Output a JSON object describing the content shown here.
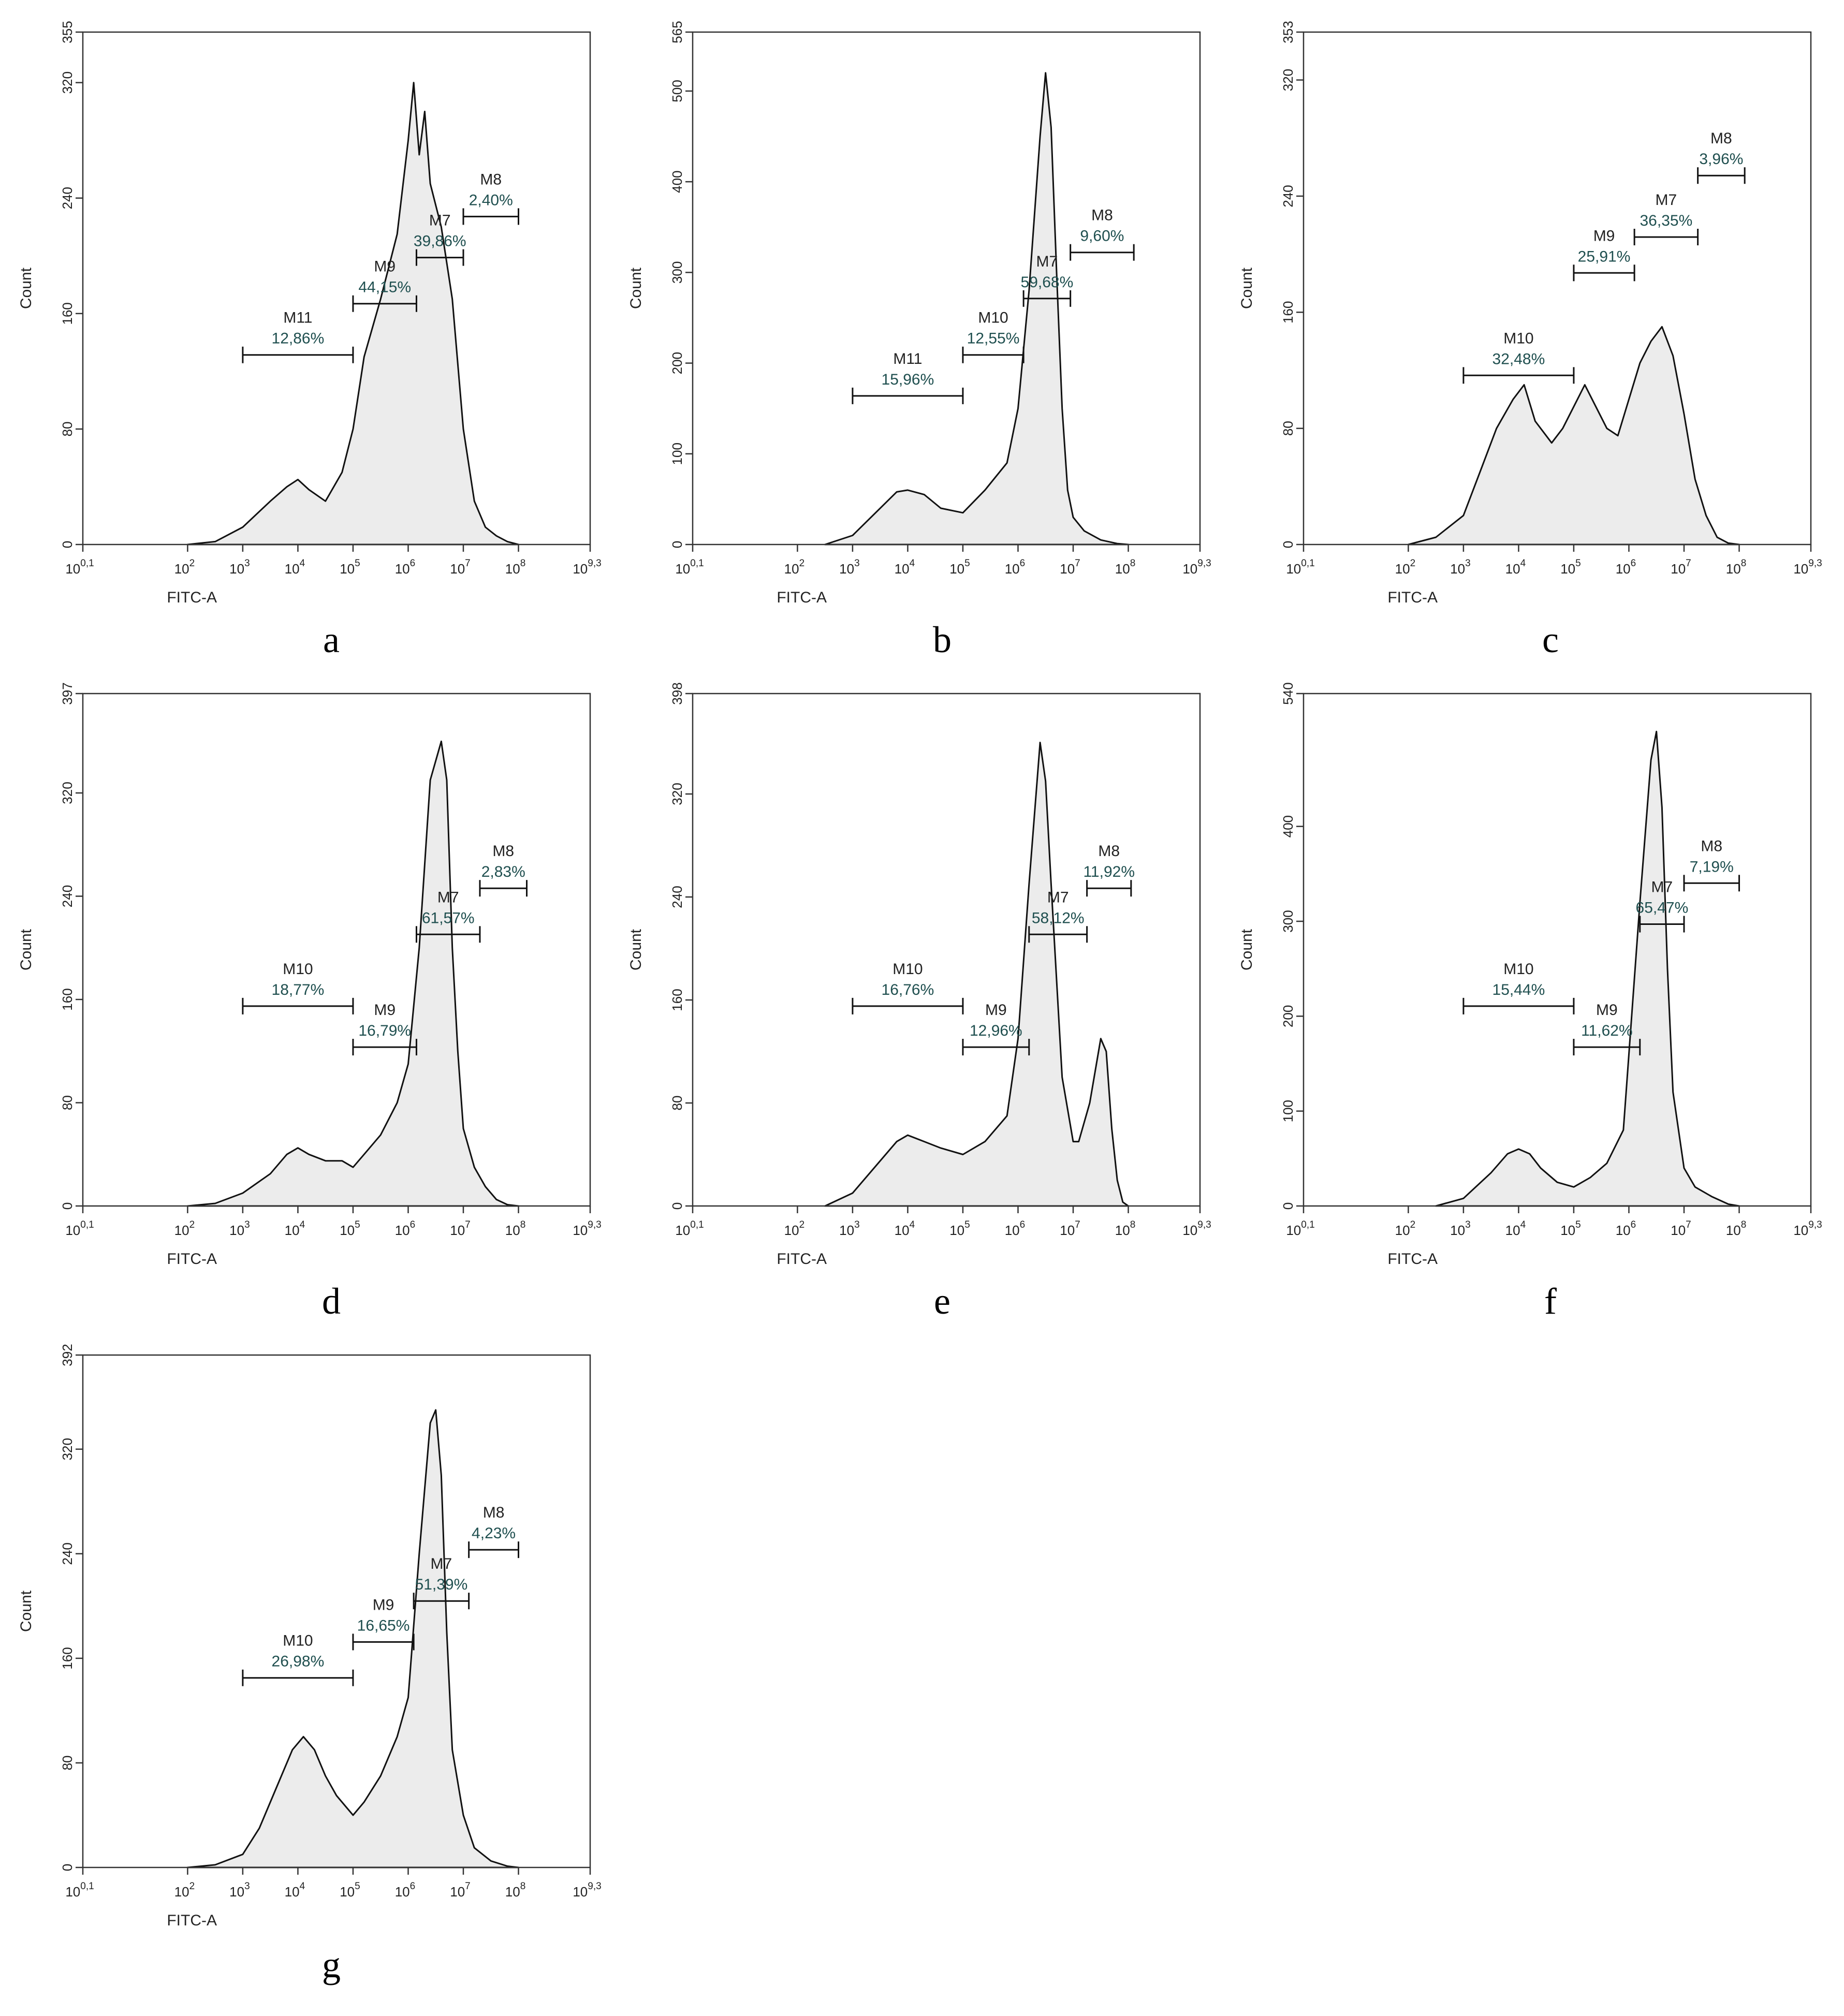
{
  "chart_data": [
    {
      "panel": "a",
      "type": "area",
      "xlabel": "FITC-A",
      "ylabel": "Count",
      "x_ticks": [
        "10^0,1",
        "10^2",
        "10^3",
        "10^4",
        "10^5",
        "10^6",
        "10^7",
        "10^8",
        "10^9,3"
      ],
      "y_ticks": [
        "0",
        "80",
        "160",
        "240",
        "320",
        "355"
      ],
      "ylim": [
        0,
        355
      ],
      "histogram": {
        "x_log10": [
          2.0,
          2.5,
          3.0,
          3.5,
          3.8,
          4.0,
          4.2,
          4.5,
          4.8,
          5.0,
          5.2,
          5.5,
          5.8,
          6.0,
          6.1,
          6.2,
          6.3,
          6.4,
          6.6,
          6.8,
          7.0,
          7.2,
          7.4,
          7.6,
          7.8,
          8.0
        ],
        "y": [
          0,
          2,
          12,
          30,
          40,
          45,
          38,
          30,
          50,
          80,
          130,
          170,
          215,
          280,
          320,
          270,
          300,
          250,
          220,
          170,
          80,
          30,
          12,
          6,
          2,
          0
        ]
      },
      "gates": [
        {
          "name": "M11",
          "percent": "12,86%",
          "x_range": [
            3.0,
            5.0
          ]
        },
        {
          "name": "M9",
          "percent": "44,15%",
          "x_range": [
            5.0,
            6.15
          ]
        },
        {
          "name": "M7",
          "percent": "39,86%",
          "x_range": [
            6.15,
            7.0
          ]
        },
        {
          "name": "M8",
          "percent": "2,40%",
          "x_range": [
            7.0,
            8.0
          ]
        }
      ]
    },
    {
      "panel": "b",
      "type": "area",
      "xlabel": "FITC-A",
      "ylabel": "Count",
      "x_ticks": [
        "10^0,1",
        "10^2",
        "10^3",
        "10^4",
        "10^5",
        "10^6",
        "10^7",
        "10^8",
        "10^9,3"
      ],
      "y_ticks": [
        "0",
        "100",
        "200",
        "300",
        "400",
        "500",
        "565"
      ],
      "ylim": [
        0,
        565
      ],
      "histogram": {
        "x_log10": [
          2.5,
          3.0,
          3.5,
          3.8,
          4.0,
          4.3,
          4.6,
          5.0,
          5.4,
          5.8,
          6.0,
          6.2,
          6.4,
          6.5,
          6.6,
          6.7,
          6.8,
          6.9,
          7.0,
          7.2,
          7.5,
          7.8,
          8.0
        ],
        "y": [
          0,
          10,
          40,
          58,
          60,
          55,
          40,
          35,
          60,
          90,
          150,
          280,
          450,
          520,
          460,
          300,
          150,
          60,
          30,
          15,
          5,
          1,
          0
        ]
      },
      "gates": [
        {
          "name": "M11",
          "percent": "15,96%",
          "x_range": [
            3.0,
            5.0
          ]
        },
        {
          "name": "M10",
          "percent": "12,55%",
          "x_range": [
            5.0,
            6.1
          ]
        },
        {
          "name": "M7",
          "percent": "59,68%",
          "x_range": [
            6.1,
            6.95
          ]
        },
        {
          "name": "M8",
          "percent": "9,60%",
          "x_range": [
            6.95,
            8.1
          ]
        }
      ]
    },
    {
      "panel": "c",
      "type": "area",
      "xlabel": "FITC-A",
      "ylabel": "Count",
      "x_ticks": [
        "10^0,1",
        "10^2",
        "10^3",
        "10^4",
        "10^5",
        "10^6",
        "10^7",
        "10^8",
        "10^9,3"
      ],
      "y_ticks": [
        "0",
        "80",
        "160",
        "240",
        "320",
        "353"
      ],
      "ylim": [
        0,
        353
      ],
      "histogram": {
        "x_log10": [
          2.0,
          2.5,
          3.0,
          3.3,
          3.6,
          3.9,
          4.1,
          4.3,
          4.6,
          4.8,
          5.0,
          5.2,
          5.4,
          5.6,
          5.8,
          6.0,
          6.2,
          6.4,
          6.6,
          6.8,
          7.0,
          7.2,
          7.4,
          7.6,
          7.8,
          8.0
        ],
        "y": [
          0,
          5,
          20,
          50,
          80,
          100,
          110,
          85,
          70,
          80,
          95,
          110,
          95,
          80,
          75,
          100,
          125,
          140,
          150,
          130,
          90,
          45,
          20,
          5,
          1,
          0
        ]
      },
      "gates": [
        {
          "name": "M10",
          "percent": "32,48%",
          "x_range": [
            3.0,
            5.0
          ]
        },
        {
          "name": "M9",
          "percent": "25,91%",
          "x_range": [
            5.0,
            6.1
          ]
        },
        {
          "name": "M7",
          "percent": "36,35%",
          "x_range": [
            6.1,
            7.25
          ]
        },
        {
          "name": "M8",
          "percent": "3,96%",
          "x_range": [
            7.25,
            8.1
          ]
        }
      ]
    },
    {
      "panel": "d",
      "type": "area",
      "xlabel": "FITC-A",
      "ylabel": "Count",
      "x_ticks": [
        "10^0,1",
        "10^2",
        "10^3",
        "10^4",
        "10^5",
        "10^6",
        "10^7",
        "10^8",
        "10^9,3"
      ],
      "y_ticks": [
        "0",
        "80",
        "160",
        "240",
        "320",
        "397"
      ],
      "ylim": [
        0,
        397
      ],
      "histogram": {
        "x_log10": [
          2.0,
          2.5,
          3.0,
          3.5,
          3.8,
          4.0,
          4.2,
          4.5,
          4.8,
          5.0,
          5.2,
          5.5,
          5.8,
          6.0,
          6.2,
          6.4,
          6.6,
          6.7,
          6.8,
          6.9,
          7.0,
          7.2,
          7.4,
          7.6,
          7.8,
          8.0
        ],
        "y": [
          0,
          2,
          10,
          25,
          40,
          45,
          40,
          35,
          35,
          30,
          40,
          55,
          80,
          110,
          200,
          330,
          360,
          330,
          200,
          120,
          60,
          30,
          15,
          5,
          1,
          0
        ]
      },
      "gates": [
        {
          "name": "M10",
          "percent": "18,77%",
          "x_range": [
            3.0,
            5.0
          ]
        },
        {
          "name": "M9",
          "percent": "16,79%",
          "x_range": [
            5.0,
            6.15
          ]
        },
        {
          "name": "M7",
          "percent": "61,57%",
          "x_range": [
            6.15,
            7.3
          ]
        },
        {
          "name": "M8",
          "percent": "2,83%",
          "x_range": [
            7.3,
            8.15
          ]
        }
      ]
    },
    {
      "panel": "e",
      "type": "area",
      "xlabel": "FITC-A",
      "ylabel": "Count",
      "x_ticks": [
        "10^0,1",
        "10^2",
        "10^3",
        "10^4",
        "10^5",
        "10^6",
        "10^7",
        "10^8",
        "10^9,3"
      ],
      "y_ticks": [
        "0",
        "80",
        "160",
        "240",
        "320",
        "398"
      ],
      "ylim": [
        0,
        398
      ],
      "histogram": {
        "x_log10": [
          2.5,
          3.0,
          3.5,
          3.8,
          4.0,
          4.3,
          4.6,
          5.0,
          5.4,
          5.8,
          6.0,
          6.2,
          6.4,
          6.5,
          6.6,
          6.8,
          7.0,
          7.1,
          7.3,
          7.5,
          7.6,
          7.7,
          7.8,
          7.9,
          8.0
        ],
        "y": [
          0,
          10,
          35,
          50,
          55,
          50,
          45,
          40,
          50,
          70,
          130,
          250,
          360,
          330,
          250,
          100,
          50,
          50,
          80,
          130,
          120,
          60,
          20,
          3,
          0
        ]
      },
      "gates": [
        {
          "name": "M10",
          "percent": "16,76%",
          "x_range": [
            3.0,
            5.0
          ]
        },
        {
          "name": "M9",
          "percent": "12,96%",
          "x_range": [
            5.0,
            6.2
          ]
        },
        {
          "name": "M7",
          "percent": "58,12%",
          "x_range": [
            6.2,
            7.25
          ]
        },
        {
          "name": "M8",
          "percent": "11,92%",
          "x_range": [
            7.25,
            8.05
          ]
        }
      ]
    },
    {
      "panel": "f",
      "type": "area",
      "xlabel": "FITC-A",
      "ylabel": "Count",
      "x_ticks": [
        "10^0,1",
        "10^2",
        "10^3",
        "10^4",
        "10^5",
        "10^6",
        "10^7",
        "10^8",
        "10^9,3"
      ],
      "y_ticks": [
        "0",
        "100",
        "200",
        "300",
        "400",
        "540"
      ],
      "ylim": [
        0,
        540
      ],
      "histogram": {
        "x_log10": [
          2.5,
          3.0,
          3.5,
          3.8,
          4.0,
          4.2,
          4.4,
          4.7,
          5.0,
          5.3,
          5.6,
          5.9,
          6.0,
          6.2,
          6.4,
          6.5,
          6.6,
          6.7,
          6.8,
          7.0,
          7.2,
          7.5,
          7.8,
          8.0
        ],
        "y": [
          0,
          8,
          35,
          55,
          60,
          55,
          40,
          25,
          20,
          30,
          45,
          80,
          160,
          320,
          470,
          500,
          420,
          250,
          120,
          40,
          20,
          10,
          2,
          0
        ]
      },
      "gates": [
        {
          "name": "M10",
          "percent": "15,44%",
          "x_range": [
            3.0,
            5.0
          ]
        },
        {
          "name": "M9",
          "percent": "11,62%",
          "x_range": [
            5.0,
            6.2
          ]
        },
        {
          "name": "M7",
          "percent": "65,47%",
          "x_range": [
            6.2,
            7.0
          ]
        },
        {
          "name": "M8",
          "percent": "7,19%",
          "x_range": [
            7.0,
            8.0
          ]
        }
      ]
    },
    {
      "panel": "g",
      "type": "area",
      "xlabel": "FITC-A",
      "ylabel": "Count",
      "x_ticks": [
        "10^0,1",
        "10^2",
        "10^3",
        "10^4",
        "10^5",
        "10^6",
        "10^7",
        "10^8",
        "10^9,3"
      ],
      "y_ticks": [
        "0",
        "80",
        "160",
        "240",
        "320",
        "392"
      ],
      "ylim": [
        0,
        392
      ],
      "histogram": {
        "x_log10": [
          2.0,
          2.5,
          3.0,
          3.3,
          3.6,
          3.9,
          4.1,
          4.3,
          4.5,
          4.7,
          4.9,
          5.0,
          5.2,
          5.5,
          5.8,
          6.0,
          6.2,
          6.4,
          6.5,
          6.6,
          6.7,
          6.8,
          7.0,
          7.2,
          7.5,
          7.8,
          8.0
        ],
        "y": [
          0,
          2,
          10,
          30,
          60,
          90,
          100,
          90,
          70,
          55,
          45,
          40,
          50,
          70,
          100,
          130,
          240,
          340,
          350,
          300,
          180,
          90,
          40,
          15,
          5,
          1,
          0
        ]
      },
      "gates": [
        {
          "name": "M10",
          "percent": "26,98%",
          "x_range": [
            3.0,
            5.0
          ]
        },
        {
          "name": "M9",
          "percent": "16,65%",
          "x_range": [
            5.0,
            6.1
          ]
        },
        {
          "name": "M7",
          "percent": "51,39%",
          "x_range": [
            6.1,
            7.1
          ]
        },
        {
          "name": "M8",
          "percent": "4,23%",
          "x_range": [
            7.1,
            8.0
          ]
        }
      ]
    }
  ]
}
